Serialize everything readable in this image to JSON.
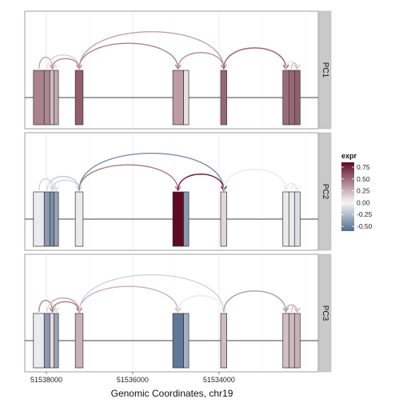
{
  "chart_data": {
    "type": "sashimi",
    "xlabel": "Genomic Coordinates, chr19",
    "x_reversed": true,
    "xlim": [
      51538500,
      51531700
    ],
    "xticks": [
      51538000,
      51536000,
      51534000
    ],
    "xtick_labels": [
      "51538000",
      "51536000",
      "51534000"
    ],
    "grid": true,
    "legend": {
      "title": "expr",
      "placement": "right",
      "range": [
        -0.6,
        0.85
      ],
      "ticks": [
        0.75,
        0.5,
        0.25,
        0.0,
        -0.25,
        -0.5
      ],
      "tick_labels": [
        "0.75",
        "0.50",
        "0.25",
        "0.00",
        "-0.25",
        "-0.50"
      ],
      "colors": {
        "low": "#536b8e",
        "mid": "#f7f7f7",
        "high": "#5e0a22"
      }
    },
    "exons": [
      {
        "start": 51538300,
        "end": 51538050
      },
      {
        "start": 51538050,
        "end": 51537920
      },
      {
        "start": 51537920,
        "end": 51537820
      },
      {
        "start": 51537820,
        "end": 51537720
      },
      {
        "start": 51537330,
        "end": 51537150
      },
      {
        "start": 51535070,
        "end": 51534820
      },
      {
        "start": 51534820,
        "end": 51534700
      },
      {
        "start": 51533960,
        "end": 51533820
      },
      {
        "start": 51532520,
        "end": 51532380
      },
      {
        "start": 51532380,
        "end": 51532250
      },
      {
        "start": 51532250,
        "end": 51532120
      }
    ],
    "panels": [
      {
        "strip": "PC1",
        "exon_expr": [
          0.42,
          0.4,
          0.22,
          0.28,
          0.55,
          0.33,
          0.08,
          0.52,
          0.5,
          0.52,
          0.55
        ],
        "junctions": [
          {
            "from": 51538170,
            "to": 51537860,
            "expr": 0.3,
            "height": 0.25
          },
          {
            "from": 51537980,
            "to": 51537240,
            "expr": 0.15,
            "height": 0.3
          },
          {
            "from": 51537980,
            "to": 51537770,
            "expr": 0.05,
            "height": 0.18
          },
          {
            "from": 51537870,
            "to": 51537240,
            "expr": 0.4,
            "height": 0.22
          },
          {
            "from": 51537240,
            "to": 51534950,
            "expr": 0.42,
            "height": 0.55
          },
          {
            "from": 51537240,
            "to": 51533890,
            "expr": 0.3,
            "height": 0.8
          },
          {
            "from": 51534950,
            "to": 51533890,
            "expr": 0.38,
            "height": 0.35
          },
          {
            "from": 51533890,
            "to": 51532450,
            "expr": 0.55,
            "height": 0.45
          },
          {
            "from": 51532450,
            "to": 51532190,
            "expr": 0.1,
            "height": 0.15
          },
          {
            "from": 51532320,
            "to": 51532190,
            "expr": 0.2,
            "height": 0.12
          }
        ]
      },
      {
        "strip": "PC2",
        "exon_expr": [
          -0.05,
          -0.4,
          -0.45,
          -0.35,
          -0.05,
          0.85,
          -0.4,
          0.12,
          -0.05,
          -0.05,
          -0.1
        ],
        "junctions": [
          {
            "from": 51538170,
            "to": 51537860,
            "expr": -0.15,
            "height": 0.25
          },
          {
            "from": 51537980,
            "to": 51537240,
            "expr": -0.2,
            "height": 0.3
          },
          {
            "from": 51537980,
            "to": 51537770,
            "expr": -0.1,
            "height": 0.18
          },
          {
            "from": 51537870,
            "to": 51537240,
            "expr": -0.15,
            "height": 0.22
          },
          {
            "from": 51537240,
            "to": 51534950,
            "expr": 0.45,
            "height": 0.55
          },
          {
            "from": 51537240,
            "to": 51533890,
            "expr": -0.45,
            "height": 0.8
          },
          {
            "from": 51534950,
            "to": 51533890,
            "expr": 0.8,
            "height": 0.35
          },
          {
            "from": 51533890,
            "to": 51532450,
            "expr": -0.05,
            "height": 0.45
          },
          {
            "from": 51532450,
            "to": 51532190,
            "expr": -0.05,
            "height": 0.15
          },
          {
            "from": 51532320,
            "to": 51532190,
            "expr": -0.05,
            "height": 0.12
          }
        ]
      },
      {
        "strip": "PC3",
        "exon_expr": [
          -0.05,
          -0.4,
          0.1,
          -0.35,
          0.25,
          -0.55,
          -0.3,
          0.22,
          0.2,
          0.22,
          0.25
        ],
        "junctions": [
          {
            "from": 51538170,
            "to": 51537860,
            "expr": 0.4,
            "height": 0.25
          },
          {
            "from": 51537980,
            "to": 51537240,
            "expr": 0.3,
            "height": 0.3
          },
          {
            "from": 51537980,
            "to": 51537770,
            "expr": 0.1,
            "height": 0.18
          },
          {
            "from": 51537870,
            "to": 51537240,
            "expr": 0.45,
            "height": 0.22
          },
          {
            "from": 51537240,
            "to": 51534950,
            "expr": 0.25,
            "height": 0.55
          },
          {
            "from": 51537240,
            "to": 51533890,
            "expr": -0.15,
            "height": 0.8
          },
          {
            "from": 51534950,
            "to": 51533890,
            "expr": 0.05,
            "height": 0.35
          },
          {
            "from": 51533890,
            "to": 51532450,
            "expr": -0.35,
            "height": 0.45
          },
          {
            "from": 51532450,
            "to": 51532190,
            "expr": 0.3,
            "height": 0.15
          },
          {
            "from": 51532320,
            "to": 51532190,
            "expr": 0.2,
            "height": 0.12
          }
        ]
      }
    ]
  }
}
